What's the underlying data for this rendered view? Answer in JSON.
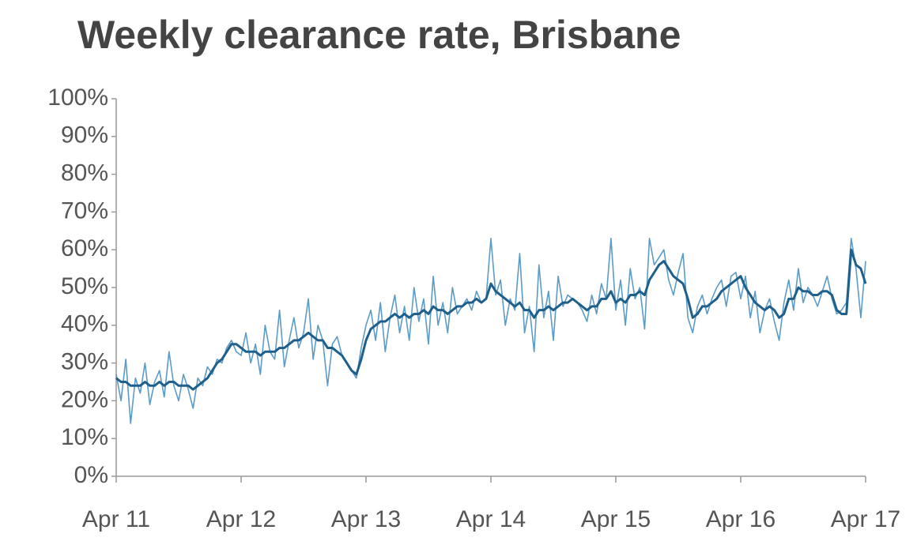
{
  "chart_data": {
    "type": "line",
    "title": "Weekly clearance rate, Brisbane",
    "x": [
      0,
      2,
      4,
      6,
      8,
      10,
      12,
      14,
      16,
      18,
      20,
      22,
      24,
      26,
      28,
      30,
      32,
      34,
      36,
      38,
      40,
      42,
      44,
      46,
      48,
      50,
      52,
      54,
      56,
      58,
      60,
      62,
      64,
      66,
      68,
      70,
      72,
      74,
      76,
      78,
      80,
      82,
      84,
      86,
      88,
      90,
      92,
      94,
      96,
      98,
      100,
      102,
      104,
      106,
      108,
      110,
      112,
      114,
      116,
      118,
      120,
      122,
      124,
      126,
      128,
      130,
      132,
      134,
      136,
      138,
      140,
      142,
      144,
      146,
      148,
      150,
      152,
      154,
      156,
      158,
      160,
      162,
      164,
      166,
      168,
      170,
      172,
      174,
      176,
      178,
      180,
      182,
      184,
      186,
      188,
      190,
      192,
      194,
      196,
      198,
      200,
      202,
      204,
      206,
      208,
      210,
      212,
      214,
      216,
      218,
      220,
      222,
      224,
      226,
      228,
      230,
      232,
      234,
      236,
      238,
      240,
      242,
      244,
      246,
      248,
      250,
      252,
      254,
      256,
      258,
      260,
      262,
      264,
      266,
      268,
      270,
      272,
      274,
      276,
      278,
      280,
      282,
      284,
      286,
      288,
      290,
      292,
      294,
      296,
      298,
      300,
      302,
      304,
      306,
      308,
      310,
      312
    ],
    "series": [
      {
        "color": "#5b9bc8",
        "width": 1.6,
        "values": [
          27,
          20,
          31,
          14,
          26,
          22,
          30,
          19,
          25,
          28,
          21,
          33,
          24,
          20,
          27,
          23,
          18,
          26,
          24,
          29,
          27,
          31,
          30,
          34,
          36,
          33,
          32,
          38,
          30,
          35,
          27,
          40,
          33,
          31,
          44,
          29,
          36,
          42,
          34,
          38,
          47,
          31,
          40,
          36,
          24,
          35,
          37,
          32,
          30,
          28,
          26,
          34,
          40,
          44,
          36,
          46,
          33,
          42,
          48,
          38,
          45,
          36,
          50,
          41,
          47,
          35,
          53,
          40,
          46,
          38,
          50,
          43,
          45,
          47,
          44,
          49,
          46,
          47,
          63,
          48,
          52,
          40,
          47,
          44,
          59,
          38,
          45,
          33,
          56,
          42,
          49,
          36,
          53,
          45,
          48,
          47,
          46,
          44,
          41,
          48,
          43,
          51,
          47,
          63,
          44,
          52,
          40,
          55,
          47,
          50,
          39,
          63,
          56,
          58,
          60,
          52,
          48,
          54,
          59,
          42,
          38,
          45,
          48,
          43,
          47,
          50,
          52,
          45,
          53,
          54,
          47,
          53,
          42,
          49,
          38,
          44,
          47,
          41,
          36,
          46,
          52,
          44,
          55,
          46,
          50,
          48,
          45,
          49,
          53,
          47,
          43,
          44,
          46,
          63,
          55,
          42,
          57
        ]
      },
      {
        "color": "#1f5f8b",
        "width": 3,
        "values": [
          26,
          25,
          25,
          24,
          24,
          24,
          25,
          24,
          24,
          25,
          24,
          25,
          25,
          24,
          24,
          24,
          23,
          24,
          25,
          26,
          28,
          30,
          31,
          33,
          35,
          35,
          34,
          33,
          33,
          33,
          32,
          33,
          33,
          33,
          34,
          34,
          35,
          36,
          36,
          37,
          38,
          37,
          36,
          36,
          34,
          34,
          33,
          32,
          30,
          28,
          27,
          31,
          36,
          39,
          40,
          41,
          41,
          42,
          43,
          42,
          43,
          42,
          43,
          43,
          44,
          43,
          45,
          44,
          44,
          43,
          44,
          45,
          45,
          46,
          46,
          47,
          46,
          47,
          51,
          49,
          48,
          47,
          46,
          45,
          46,
          44,
          44,
          42,
          44,
          44,
          45,
          44,
          45,
          46,
          46,
          47,
          46,
          45,
          44,
          45,
          45,
          47,
          47,
          49,
          46,
          47,
          46,
          48,
          48,
          49,
          48,
          52,
          54,
          56,
          57,
          55,
          53,
          52,
          51,
          47,
          42,
          43,
          45,
          45,
          46,
          47,
          49,
          50,
          51,
          52,
          53,
          50,
          48,
          46,
          45,
          44,
          45,
          44,
          42,
          43,
          47,
          47,
          50,
          49,
          49,
          48,
          48,
          49,
          49,
          48,
          44,
          43,
          43,
          60,
          56,
          55,
          51
        ]
      }
    ],
    "xlim": [
      0,
      312
    ],
    "xticks": [
      {
        "value": 0,
        "label": "Apr 11"
      },
      {
        "value": 52,
        "label": "Apr 12"
      },
      {
        "value": 104,
        "label": "Apr 13"
      },
      {
        "value": 156,
        "label": "Apr 14"
      },
      {
        "value": 208,
        "label": "Apr 15"
      },
      {
        "value": 260,
        "label": "Apr 16"
      },
      {
        "value": 312,
        "label": "Apr 17"
      }
    ],
    "ylim": [
      0,
      100
    ],
    "yticks": [
      {
        "value": 0,
        "label": "0%"
      },
      {
        "value": 10,
        "label": "10%"
      },
      {
        "value": 20,
        "label": "20%"
      },
      {
        "value": 30,
        "label": "30%"
      },
      {
        "value": 40,
        "label": "40%"
      },
      {
        "value": 50,
        "label": "50%"
      },
      {
        "value": 60,
        "label": "60%"
      },
      {
        "value": 70,
        "label": "70%"
      },
      {
        "value": 80,
        "label": "80%"
      },
      {
        "value": 90,
        "label": "90%"
      },
      {
        "value": 100,
        "label": "100%"
      }
    ]
  }
}
